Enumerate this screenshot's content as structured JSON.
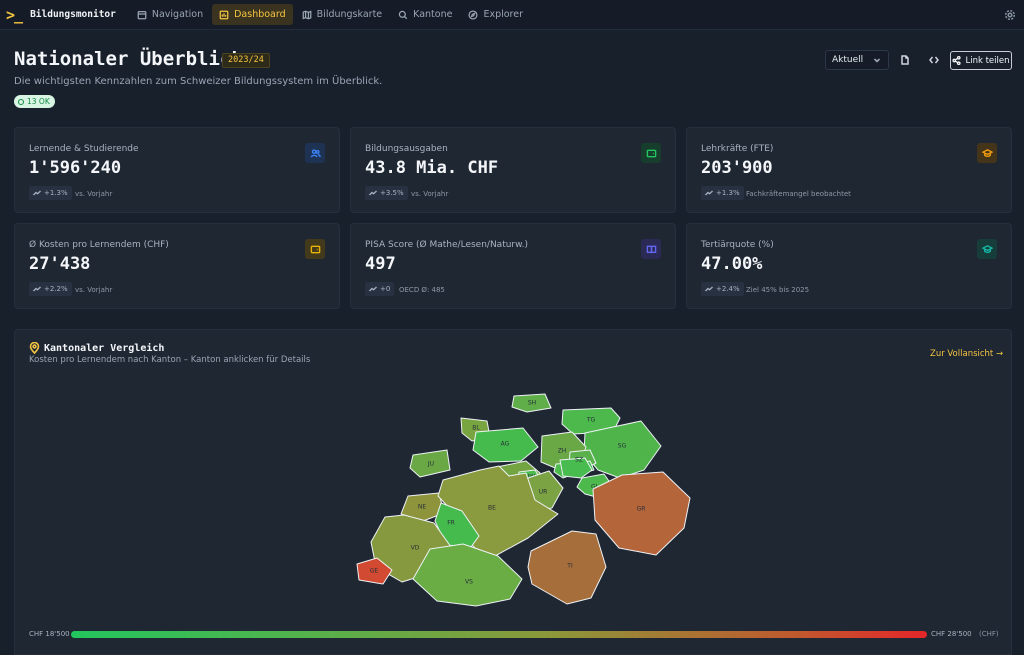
{
  "nav": {
    "brand_mark": ">_",
    "brand_name": "Bildungsmonitor",
    "items": [
      {
        "label": "Navigation",
        "icon": "calendar-icon"
      },
      {
        "label": "Dashboard",
        "icon": "bar-chart-icon",
        "active": true
      },
      {
        "label": "Bildungskarte",
        "icon": "map-icon"
      },
      {
        "label": "Kantone",
        "icon": "search-icon"
      },
      {
        "label": "Explorer",
        "icon": "compass-icon"
      }
    ]
  },
  "header": {
    "title": "Nationaler Überblick",
    "year_badge": "2023/24",
    "subtitle": "Die wichtigsten Kennzahlen zum Schweizer Bildungssystem im Überblick.",
    "status_badge": "13 OK",
    "period_select": "Aktuell",
    "share_label": "Link teilen"
  },
  "kpis": [
    {
      "label": "Lernende & Studierende",
      "value": "1'596'240",
      "trend": "+1.3%",
      "note": "vs. Vorjahr",
      "icon": "users-icon",
      "accent": "#3b82f6"
    },
    {
      "label": "Bildungsausgaben",
      "value": "43.8 Mia. CHF",
      "trend": "+3.5%",
      "note": "vs. Vorjahr",
      "icon": "wallet-icon",
      "accent": "#22c55e"
    },
    {
      "label": "Lehrkräfte (FTE)",
      "value": "203'900",
      "trend": "+1.3%",
      "note": "Fachkräftemangel beobachtet",
      "icon": "graduation-cap-icon",
      "accent": "#f59e0b"
    },
    {
      "label": "Ø Kosten pro Lernendem (CHF)",
      "value": "27'438",
      "trend": "+2.2%",
      "note": "vs. Vorjahr",
      "icon": "wallet-icon",
      "accent": "#eab308"
    },
    {
      "label": "PISA Score (Ø Mathe/Lesen/Naturw.)",
      "value": "497",
      "trend": "+0",
      "note": "OECD Ø: 485",
      "icon": "book-icon",
      "accent": "#6366f1"
    },
    {
      "label": "Tertiärquote (%)",
      "value": "47.00%",
      "trend": "+2.4%",
      "note": "Ziel 45% bis 2025",
      "icon": "graduation-cap-icon",
      "accent": "#14b8a6"
    }
  ],
  "map": {
    "title": "Kantonaler Vergleich",
    "subtitle": "Kosten pro Lernendem nach Kanton – Kanton anklicken für Details",
    "link": "Zur Vollansicht →",
    "legend_min": "CHF 18'500",
    "legend_max": "CHF 28'500",
    "legend_unit": "(CHF)",
    "cantons": [
      {
        "code": "SH",
        "color": "#5fae4a"
      },
      {
        "code": "TG",
        "color": "#4db84c"
      },
      {
        "code": "BL",
        "color": "#78a540"
      },
      {
        "code": "AG",
        "color": "#45bb4d"
      },
      {
        "code": "SG",
        "color": "#4fb54b"
      },
      {
        "code": "JU",
        "color": "#6aa845"
      },
      {
        "code": "ZH",
        "color": "#6aa845"
      },
      {
        "code": "AR",
        "color": "#5ab04a"
      },
      {
        "code": "AI",
        "color": "#42bf4e"
      },
      {
        "code": "ZG",
        "color": "#4cba4c"
      },
      {
        "code": "SZ",
        "color": "#48bc4e"
      },
      {
        "code": "LU",
        "color": "#72a442"
      },
      {
        "code": "OW",
        "color": "#6aa845"
      },
      {
        "code": "NW",
        "color": "#4cba4c"
      },
      {
        "code": "GL",
        "color": "#4db84c"
      },
      {
        "code": "UR",
        "color": "#7ca343"
      },
      {
        "code": "NE",
        "color": "#8e943c"
      },
      {
        "code": "BE",
        "color": "#8a9a3e"
      },
      {
        "code": "FR",
        "color": "#45bb4d"
      },
      {
        "code": "GR",
        "color": "#b5653a"
      },
      {
        "code": "VD",
        "color": "#87993f"
      },
      {
        "code": "TI",
        "color": "#a66e3a"
      },
      {
        "code": "GE",
        "color": "#d34a32"
      },
      {
        "code": "VS",
        "color": "#6aad45"
      }
    ]
  }
}
